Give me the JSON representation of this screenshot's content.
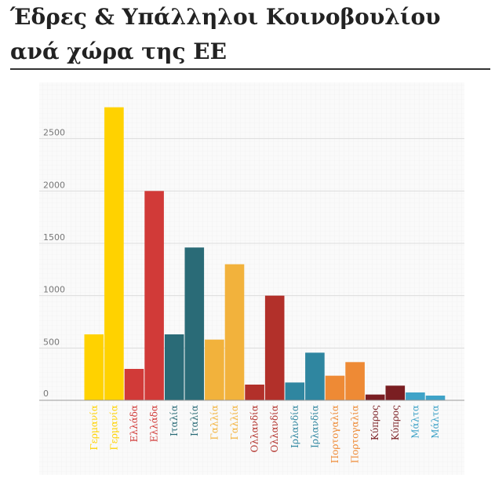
{
  "title": "Έδρες & Υπάλληλοι Κοινοβουλίου ανά χώρα της ΕΕ",
  "chart_data": {
    "type": "bar",
    "title": "Έδρες & Υπάλληλοι Κοινοβουλίου ανά χώρα της ΕΕ",
    "xlabel": "",
    "ylabel": "",
    "ylim": [
      0,
      3000
    ],
    "yticks": [
      0,
      500,
      1000,
      1500,
      2000,
      2500
    ],
    "grid": true,
    "categories": [
      "Γερμανία",
      "Γερμανία",
      "Ελλάδα",
      "Ελλάδα",
      "Ιταλία",
      "Ιταλία",
      "Γαλλία",
      "Γαλλία",
      "Ολλανδία",
      "Ολλανδία",
      "Ιρλανδία",
      "Ιρλανδία",
      "Πορτογαλία",
      "Πορτογαλία",
      "Κύπρος",
      "Κύπρος",
      "Μάλτα",
      "Μάλτα"
    ],
    "values": [
      630,
      2800,
      300,
      2000,
      630,
      1460,
      580,
      1300,
      150,
      1000,
      170,
      455,
      235,
      365,
      55,
      140,
      75,
      45
    ],
    "colors": [
      "#FFD200",
      "#FFD200",
      "#D13A38",
      "#D13A38",
      "#2A6B77",
      "#2A6B77",
      "#F2B23C",
      "#F2B23C",
      "#B2302A",
      "#B2302A",
      "#2F86A0",
      "#2F86A0",
      "#EE8A35",
      "#EE8A35",
      "#7A1E22",
      "#7A1E22",
      "#3FA3C8",
      "#3FA3C8"
    ]
  }
}
